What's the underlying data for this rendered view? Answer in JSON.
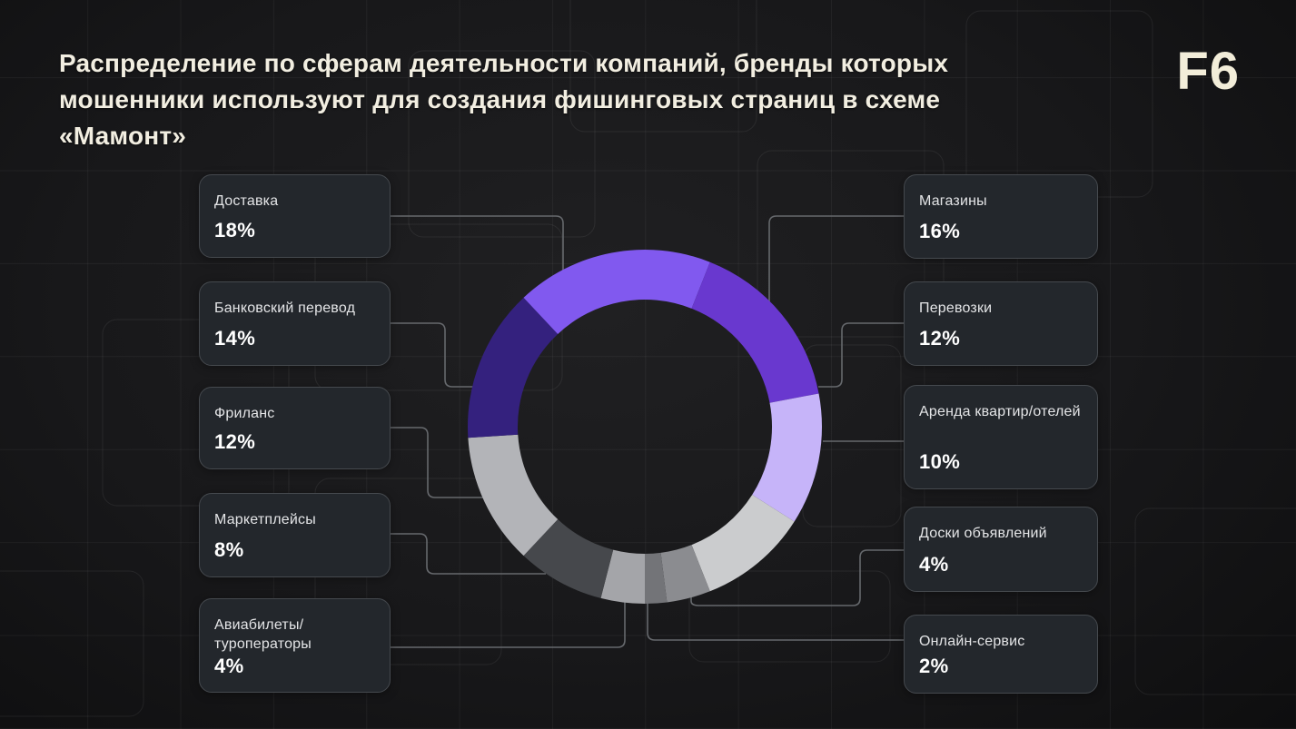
{
  "header": {
    "title_line1": "Распределение по сферам деятельности компаний, бренды которых",
    "title_line2": "мошенники используют для создания фишинговых страниц в схеме «Мамонт»",
    "logo_text": "F6"
  },
  "cards": {
    "left": [
      {
        "label": "Доставка",
        "value_label": "18%"
      },
      {
        "label": "Банковский перевод",
        "value_label": "14%"
      },
      {
        "label": "Фриланс",
        "value_label": "12%"
      },
      {
        "label": "Маркетплейсы",
        "value_label": "8%"
      },
      {
        "label": "Авиабилеты/туроператоры",
        "value_label": "4%"
      }
    ],
    "right": [
      {
        "label": "Магазины",
        "value_label": "16%"
      },
      {
        "label": "Перевозки",
        "value_label": "12%"
      },
      {
        "label": "Аренда квартир/отелей",
        "value_label": "10%"
      },
      {
        "label": "Доски объявлений",
        "value_label": "4%"
      },
      {
        "label": "Онлайн-сервис",
        "value_label": "2%"
      }
    ]
  },
  "chart_data": {
    "type": "pie",
    "variant": "donut",
    "title": "Распределение по сферам деятельности компаний, бренды которых мошенники используют для создания фишинговых страниц в схеме «Мамонт»",
    "unit": "%",
    "total": 100,
    "start_angle_deg": 180,
    "direction": "clockwise",
    "legend_position": "side-cards",
    "segments": [
      {
        "label": "Авиабилеты/туроператоры",
        "value": 4,
        "color": "#a4a5a9"
      },
      {
        "label": "Маркетплейсы",
        "value": 8,
        "color": "#46484c"
      },
      {
        "label": "Фриланс",
        "value": 12,
        "color": "#b3b4b8"
      },
      {
        "label": "Банковский перевод",
        "value": 14,
        "color": "#34217e"
      },
      {
        "label": "Доставка",
        "value": 18,
        "color": "#8159ef"
      },
      {
        "label": "Магазины",
        "value": 16,
        "color": "#6938cf"
      },
      {
        "label": "Перевозки",
        "value": 12,
        "color": "#c6b4f9"
      },
      {
        "label": "Аренда квартир/отелей",
        "value": 10,
        "color": "#cbccce"
      },
      {
        "label": "Доски объявлений",
        "value": 4,
        "color": "#8b8c90"
      },
      {
        "label": "Онлайн-сервис",
        "value": 2,
        "color": "#737478"
      }
    ],
    "colors": {
      "accent_purple": "#8159ef",
      "dark_purple": "#34217e",
      "violet": "#6938cf",
      "lavender": "#c6b4f9",
      "connector_line": "#66696d"
    }
  }
}
